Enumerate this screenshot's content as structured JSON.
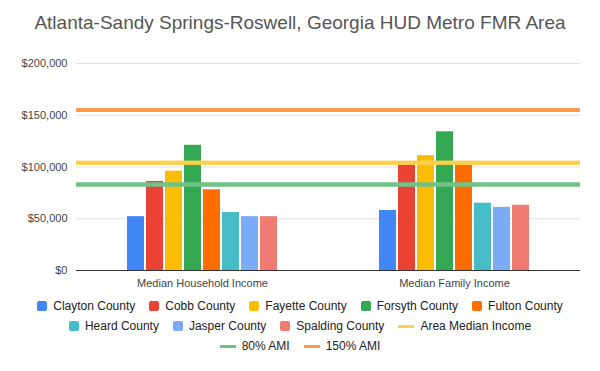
{
  "chart_data": {
    "type": "bar",
    "title": "Atlanta-Sandy Springs-Roswell, Georgia HUD Metro FMR Area",
    "categories": [
      "Median Household Income",
      "Median Family Income"
    ],
    "series": [
      {
        "name": "Clayton County",
        "color": "#4285f4",
        "values": [
          52000,
          58000
        ]
      },
      {
        "name": "Cobb County",
        "color": "#ea4335",
        "values": [
          86000,
          103000
        ]
      },
      {
        "name": "Fayette County",
        "color": "#fbbc04",
        "values": [
          96000,
          111000
        ]
      },
      {
        "name": "Forsyth County",
        "color": "#34a853",
        "values": [
          121000,
          134000
        ]
      },
      {
        "name": "Fulton County",
        "color": "#ff6d01",
        "values": [
          78000,
          103000
        ]
      },
      {
        "name": "Heard County",
        "color": "#46bdc6",
        "values": [
          56000,
          65000
        ]
      },
      {
        "name": "Jasper County",
        "color": "#7baaf7",
        "values": [
          52000,
          61000
        ]
      },
      {
        "name": "Spalding County",
        "color": "#f07b72",
        "values": [
          52000,
          63000
        ]
      },
      {
        "name": "Area Median Income",
        "color": "#fcd04f",
        "type": "line",
        "values": [
          104000,
          104000
        ]
      },
      {
        "name": "80% AMI",
        "color": "#71c287",
        "type": "line",
        "values": [
          83000,
          83000
        ]
      },
      {
        "name": "150% AMI",
        "color": "#ff994d",
        "type": "line",
        "values": [
          155000,
          155000
        ]
      }
    ],
    "ylim": [
      0,
      200000
    ],
    "yticks": [
      {
        "value": 0,
        "label": "$0"
      },
      {
        "value": 50000,
        "label": "$50,000"
      },
      {
        "value": 100000,
        "label": "$100,000"
      },
      {
        "value": 150000,
        "label": "$150,000"
      },
      {
        "value": 200000,
        "label": "$200,000"
      }
    ],
    "grid": true,
    "legend": "bottom"
  }
}
